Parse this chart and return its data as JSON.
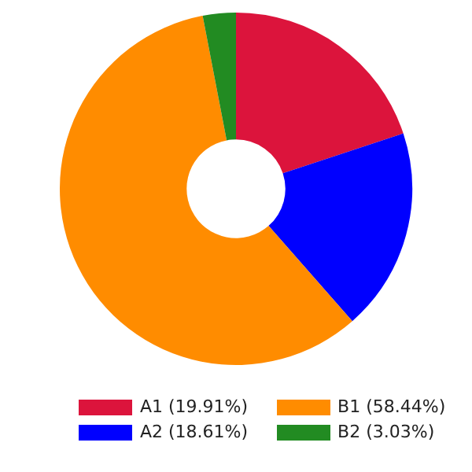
{
  "chart_data": {
    "type": "donut",
    "categories": [
      "A1 (19.91%)",
      "A2 (18.61%)",
      "B1 (58.44%)",
      "B2 (3.03%)"
    ],
    "values": [
      19.91,
      18.61,
      58.44,
      3.03
    ],
    "colors": [
      "#dc143c",
      "#0000ff",
      "#ff8c00",
      "#228b22"
    ],
    "legend": "bottom"
  }
}
